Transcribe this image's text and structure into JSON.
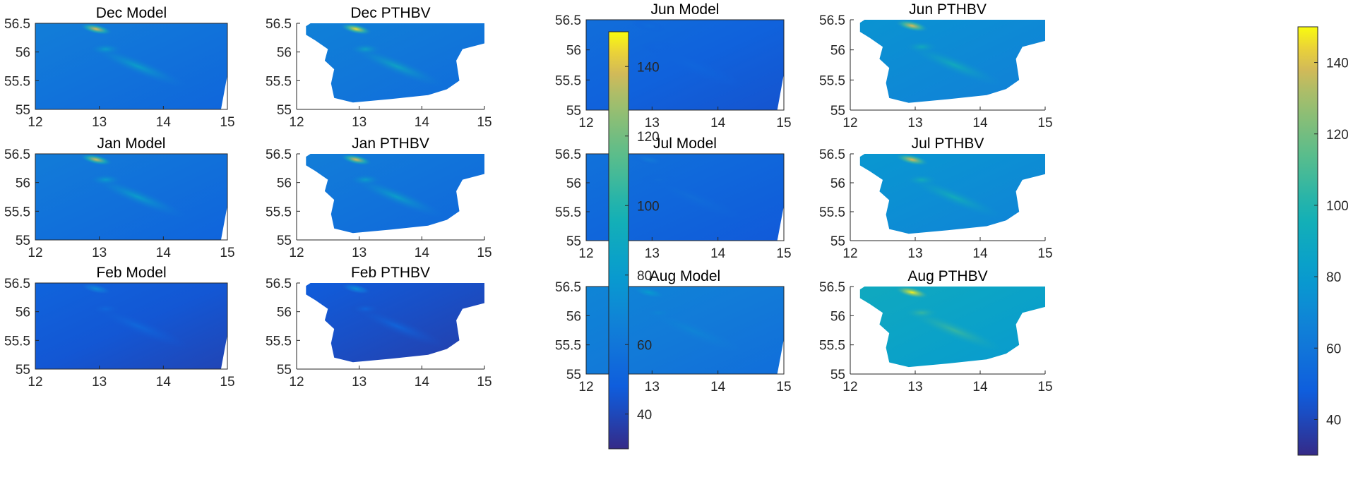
{
  "chart_data": {
    "type": "heatmap",
    "colormap": "parula",
    "xlim": [
      12,
      15
    ],
    "ylim": [
      55,
      56.5
    ],
    "x_ticks": [
      "12",
      "13",
      "14",
      "15"
    ],
    "y_ticks": [
      "55",
      "55.5",
      "56",
      "56.5"
    ],
    "colorbar": {
      "range": [
        30,
        150
      ],
      "ticks": [
        "40",
        "60",
        "80",
        "100",
        "120",
        "140"
      ]
    },
    "panels": [
      {
        "title": "Dec Model",
        "kind": "model",
        "base": 58,
        "hotspot": 140
      },
      {
        "title": "Dec PTHBV",
        "kind": "obs",
        "base": 60,
        "hotspot": 145
      },
      {
        "title": "Jan Model",
        "kind": "model",
        "base": 57,
        "hotspot": 138
      },
      {
        "title": "Jan PTHBV",
        "kind": "obs",
        "base": 58,
        "hotspot": 140
      },
      {
        "title": "Feb Model",
        "kind": "model",
        "base": 45,
        "hotspot": 70
      },
      {
        "title": "Feb PTHBV",
        "kind": "obs",
        "base": 42,
        "hotspot": 72
      },
      {
        "title": "Jun Model",
        "kind": "model",
        "base": 50,
        "hotspot": 55
      },
      {
        "title": "Jun PTHBV",
        "kind": "obs",
        "base": 70,
        "hotspot": 140
      },
      {
        "title": "Jul Model",
        "kind": "model",
        "base": 52,
        "hotspot": 62
      },
      {
        "title": "Jul PTHBV",
        "kind": "obs",
        "base": 72,
        "hotspot": 140
      },
      {
        "title": "Aug Model",
        "kind": "model",
        "base": 62,
        "hotspot": 80
      },
      {
        "title": "Aug PTHBV",
        "kind": "obs",
        "base": 85,
        "hotspot": 148
      }
    ]
  }
}
